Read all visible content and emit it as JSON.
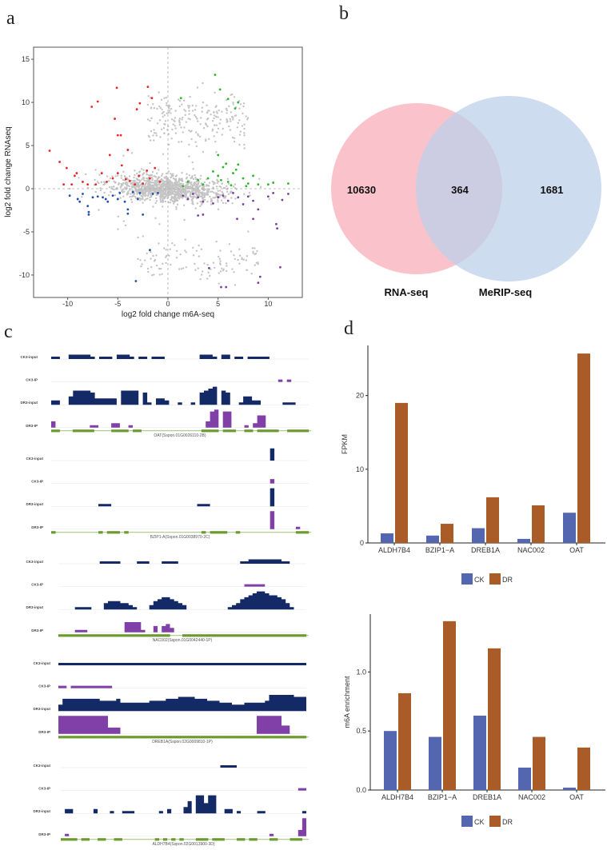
{
  "panels": {
    "a": "a",
    "b": "b",
    "c": "c",
    "d": "d"
  },
  "colors": {
    "gray": "#c4c4c4",
    "red": "#e8262a",
    "blue": "#1f4fa8",
    "green": "#2fb52a",
    "purple": "#7b3fa0",
    "ck": "#5566b0",
    "dr": "#a95c28",
    "input_track": "#142a66",
    "ip_track": "#8040a8",
    "exon": "#6d9a2e",
    "venn_rna": "#f9b9c2",
    "venn_merip": "#bcd0ea"
  },
  "chart_data": [
    {
      "type": "scatter",
      "xlabel": "log2 fold change m6A-seq",
      "ylabel": "log2 fold change RNAseq",
      "xlim": [
        -13.4,
        13.4
      ],
      "ylim": [
        -12.6,
        16.4
      ],
      "xticks": [
        -10,
        -5,
        0,
        5,
        10
      ],
      "yticks": [
        -10,
        -5,
        0,
        5,
        10,
        15
      ],
      "reference_lines": {
        "x": 0,
        "y": 0,
        "style": "dashed"
      },
      "grid": false,
      "series": [
        {
          "color": "red",
          "points": [
            [
              -11.8,
              4.4
            ],
            [
              -10.8,
              3.1
            ],
            [
              -10.1,
              2.4
            ],
            [
              -10.4,
              0.5
            ],
            [
              -9.6,
              0.5
            ],
            [
              -9.1,
              1.8
            ],
            [
              -8.5,
              0.8
            ],
            [
              -7.6,
              9.5
            ],
            [
              -7.0,
              10.1
            ],
            [
              -5.8,
              3.9
            ],
            [
              -5.1,
              11.7
            ],
            [
              -5.3,
              8.1
            ],
            [
              -5.0,
              6.2
            ],
            [
              -4.7,
              6.2
            ],
            [
              -4.0,
              4.5
            ],
            [
              -2.0,
              11.8
            ],
            [
              -2.8,
              9.9
            ],
            [
              -1.6,
              10.5
            ],
            [
              -3.1,
              9.2
            ],
            [
              -2.1,
              2.1
            ],
            [
              -5.0,
              1.8
            ],
            [
              -6.1,
              0.8
            ],
            [
              -4.2,
              1.1
            ],
            [
              -2.9,
              1.5
            ],
            [
              -1.3,
              2.4
            ],
            [
              -0.8,
              0.8
            ],
            [
              -7.2,
              0.5
            ],
            [
              -4.6,
              2.7
            ],
            [
              -3.3,
              0.5
            ],
            [
              -6.6,
              1.8
            ],
            [
              -8.0,
              0.5
            ],
            [
              -1.8,
              1.2
            ],
            [
              -2.5,
              0.6
            ],
            [
              -3.8,
              0.9
            ],
            [
              -5.5,
              1.2
            ],
            [
              -9.3,
              1.5
            ]
          ]
        },
        {
          "color": "blue",
          "points": [
            [
              -9.8,
              -0.8
            ],
            [
              -9.0,
              -1.2
            ],
            [
              -8.5,
              -0.6
            ],
            [
              -8.0,
              -2.0
            ],
            [
              -7.9,
              -2.7
            ],
            [
              -7.9,
              -3.0
            ],
            [
              -7.5,
              -1.0
            ],
            [
              -7.0,
              -0.9
            ],
            [
              -6.5,
              -1.0
            ],
            [
              -6.0,
              -1.5
            ],
            [
              -5.5,
              -0.8
            ],
            [
              -5.0,
              -1.2
            ],
            [
              -4.8,
              -0.5
            ],
            [
              -4.3,
              -1.5
            ],
            [
              -4.0,
              -2.4
            ],
            [
              -4.0,
              -2.9
            ],
            [
              -3.5,
              -0.4
            ],
            [
              -3.0,
              -1.2
            ],
            [
              -2.5,
              -3.0
            ],
            [
              -3.2,
              -10.7
            ],
            [
              -1.8,
              -7.1
            ],
            [
              -1.5,
              -0.6
            ],
            [
              -1.0,
              -0.5
            ],
            [
              -2.8,
              -0.5
            ],
            [
              -8.8,
              -1.5
            ],
            [
              -6.2,
              -1.2
            ]
          ]
        },
        {
          "color": "green",
          "points": [
            [
              1.3,
              10.5
            ],
            [
              4.7,
              13.2
            ],
            [
              5.2,
              11.5
            ],
            [
              6.0,
              10.4
            ],
            [
              7.0,
              10.0
            ],
            [
              6.7,
              9.3
            ],
            [
              5.0,
              3.9
            ],
            [
              4.5,
              2.0
            ],
            [
              5.0,
              1.5
            ],
            [
              5.5,
              2.5
            ],
            [
              6.0,
              0.8
            ],
            [
              6.5,
              1.8
            ],
            [
              7.0,
              2.8
            ],
            [
              7.5,
              1.2
            ],
            [
              8.0,
              0.6
            ],
            [
              8.5,
              1.5
            ],
            [
              9.0,
              0.5
            ],
            [
              10.0,
              0.5
            ],
            [
              10.5,
              0.7
            ],
            [
              12.0,
              0.6
            ],
            [
              3.0,
              1.0
            ],
            [
              2.0,
              0.8
            ],
            [
              1.5,
              0.3
            ],
            [
              4.0,
              1.2
            ],
            [
              5.8,
              2.9
            ],
            [
              6.3,
              0.4
            ],
            [
              7.8,
              0.3
            ],
            [
              3.5,
              0.5
            ],
            [
              5.3,
              1.0
            ],
            [
              6.8,
              2.2
            ]
          ]
        },
        {
          "color": "purple",
          "points": [
            [
              1.5,
              -0.8
            ],
            [
              2.0,
              -1.2
            ],
            [
              2.5,
              -0.6
            ],
            [
              3.0,
              -1.0
            ],
            [
              3.5,
              -1.5
            ],
            [
              3.0,
              -3.1
            ],
            [
              3.5,
              -3.0
            ],
            [
              4.1,
              -9.2
            ],
            [
              4.5,
              -1.7
            ],
            [
              5.0,
              -1.0
            ],
            [
              5.5,
              -0.8
            ],
            [
              6.0,
              -1.4
            ],
            [
              6.5,
              -0.5
            ],
            [
              6.9,
              -3.5
            ],
            [
              7.0,
              -1.0
            ],
            [
              7.5,
              -1.8
            ],
            [
              8.0,
              -0.9
            ],
            [
              8.5,
              -1.4
            ],
            [
              8.5,
              -3.5
            ],
            [
              9.0,
              -2.4
            ],
            [
              9.0,
              -10.9
            ],
            [
              9.2,
              -10.2
            ],
            [
              10.0,
              -0.9
            ],
            [
              10.5,
              -0.5
            ],
            [
              10.8,
              -4.1
            ],
            [
              10.9,
              -4.6
            ],
            [
              11.2,
              -9.1
            ],
            [
              11.4,
              -1.3
            ],
            [
              5.3,
              -11.4
            ],
            [
              5.8,
              -11.4
            ],
            [
              12.0,
              -0.6
            ]
          ]
        }
      ]
    },
    {
      "type": "venn",
      "sets": [
        {
          "name": "RNA-seq",
          "only": "10630",
          "color": "venn_rna"
        },
        {
          "name": "MeRIP-seq",
          "only": "1681",
          "color": "venn_merip"
        }
      ],
      "overlap": "364"
    },
    {
      "type": "genome-tracks",
      "track_names": [
        "CK3-input",
        "CK3-IP",
        "DR3-input",
        "DR3-IP"
      ],
      "genes": [
        {
          "label": "OAT(Sspon.01G0026110-2B)",
          "tracks": [
            "11002222210111022210110111000000002221022011011111000000000",
            "00000000000000000000000000000000000000000000000000001010000",
            "22004777763333307777061033200100106789076001442200000111000",
            "300000000110002200100000000000000000389088000102660000000000"
          ],
          "exons": "110001111100001111011000000000000001111011100110111110011111"
        },
        {
          "label": "BZIP1-A(Sspon.01G0038970-2C)",
          "tracks": [
            "000000000000000000000000000000000000000000000000000600000000",
            "000000000000000000000000000000000000000000000000000200000000",
            "000000000001110000000000000000000011100000000000000900000000",
            "000000000000000000000000000000000000000000000000000900000100"
          ],
          "exons": "100000000001011101000000000000000001011110010000000000000111"
        },
        {
          "label": "NAC002(Sspon.01G0042440-1P)",
          "tracks": [
            "000000000011111000011100011110000000000000001122222222110000",
            "000000000000000000000000000000000000000000000111110000000000",
            "000011110003444332100024566543200000000001235678998776531000",
            "000011100000000055551003034200000000000000000000000000000000"
          ],
          "exons": "111111111111111111111111111000111111111111111111111111111111"
        },
        {
          "label": "DREB1A(Sspon.02G0009810-1P)",
          "tracks": [
            "111111111111111111111111111111111111111111111111111111111111",
            "110111111111100000000000000000000000000000000000000000000000",
            "366666666655556444444455556667777666555444333444445888888777",
            "999999999999333000000000000000000000000000000000999999440000"
          ],
          "exons": "111111111111111111111111111111111111111111111111111111111111"
        },
        {
          "label": "ALDH7B4(Sspon.02G0013900-3D)",
          "tracks": [
            "000000000000000000000000000000000000000111100000000000000000",
            "000000000000000000000000000000000000000000000000000000000011",
            "022000002000100111000000102000360995990022010000110000000001",
            "010000000000000000000000000000000000000000000000000100000039"
          ],
          "exons": "111101100110011000000001010101000111011100011011000110001110"
        }
      ]
    },
    {
      "type": "bar",
      "ylabel": "FPKM",
      "categories": [
        "ALDH7B4",
        "BZIP1−A",
        "DREB1A",
        "NAC002",
        "OAT"
      ],
      "yticks": [
        "0",
        "10",
        "20"
      ],
      "ylim": [
        0,
        26.8
      ],
      "legend": "bottom",
      "series": [
        {
          "name": "CK",
          "color": "ck",
          "values": [
            1.3,
            1.0,
            2.0,
            0.55,
            4.1
          ]
        },
        {
          "name": "DR",
          "color": "dr",
          "values": [
            19.0,
            2.6,
            6.2,
            5.1,
            25.7
          ]
        }
      ]
    },
    {
      "type": "bar",
      "ylabel": "m6A enrichment",
      "categories": [
        "ALDH7B4",
        "BZIP1−A",
        "DREB1A",
        "NAC002",
        "OAT"
      ],
      "yticks": [
        "0.0",
        "0.5",
        "1.0"
      ],
      "ylim": [
        0,
        1.49
      ],
      "legend": "bottom",
      "series": [
        {
          "name": "CK",
          "color": "ck",
          "values": [
            0.5,
            0.45,
            0.63,
            0.19,
            0.02
          ]
        },
        {
          "name": "DR",
          "color": "dr",
          "values": [
            0.82,
            1.43,
            1.2,
            0.45,
            0.36
          ]
        }
      ]
    }
  ]
}
